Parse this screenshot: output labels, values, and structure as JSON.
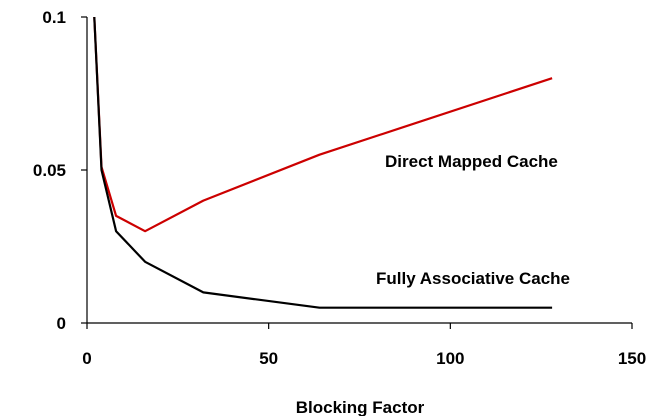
{
  "chart_data": {
    "type": "line",
    "xlabel": "Blocking Factor",
    "ylabel": "",
    "title": "",
    "xlim": [
      0,
      150
    ],
    "ylim": [
      0,
      0.1
    ],
    "x_ticks": [
      0,
      50,
      100,
      150
    ],
    "x_tick_labels": [
      "0",
      "50",
      "100",
      "150"
    ],
    "y_ticks": [
      0,
      0.05,
      0.1
    ],
    "y_tick_labels": [
      "0",
      "0.05",
      "0.1"
    ],
    "grid": false,
    "legend": "inline labels",
    "series": [
      {
        "name": "Direct Mapped Cache",
        "color": "#cc0000",
        "x": [
          2,
          4,
          8,
          16,
          32,
          64,
          128
        ],
        "y": [
          0.1,
          0.051,
          0.035,
          0.03,
          0.04,
          0.055,
          0.08
        ]
      },
      {
        "name": "Fully Associative Cache",
        "color": "#000000",
        "x": [
          2,
          4,
          8,
          16,
          32,
          64,
          128
        ],
        "y": [
          0.1,
          0.05,
          0.03,
          0.02,
          0.01,
          0.005,
          0.005
        ]
      }
    ]
  }
}
